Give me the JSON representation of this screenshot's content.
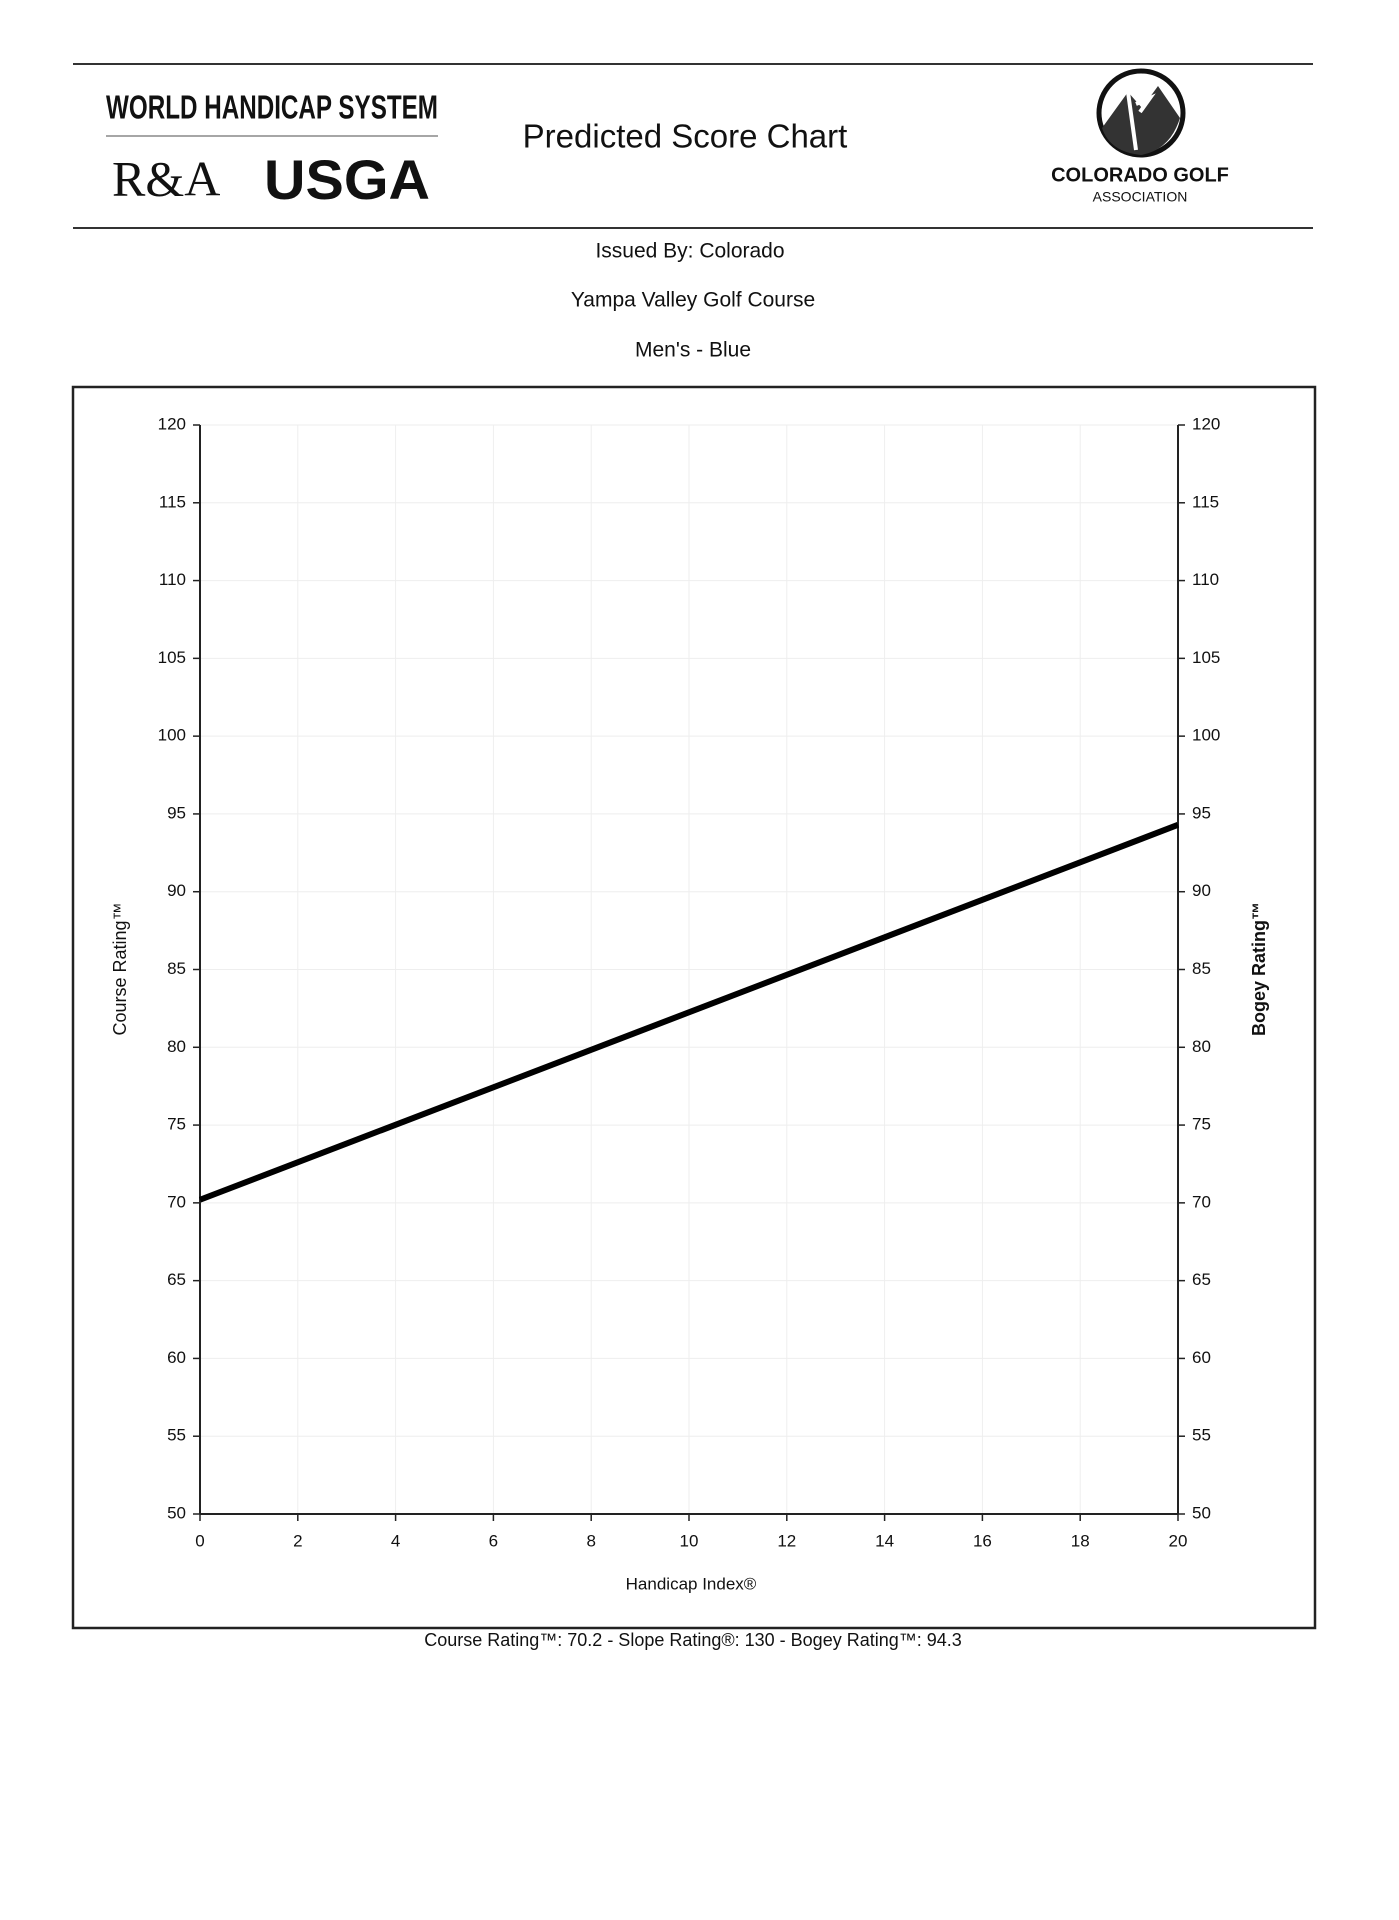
{
  "header": {
    "system": "WORLD HANDICAP SYSTEM",
    "ra": "R&A",
    "usga": "USGA",
    "title": "Predicted Score Chart",
    "association_name": "COLORADO GOLF",
    "association_sub": "ASSOCIATION",
    "issued_by": "Issued By: Colorado",
    "course": "Yampa Valley Golf Course",
    "tee": "Men's - Blue"
  },
  "chart_data": {
    "type": "line",
    "x": [
      0,
      20
    ],
    "values": [
      70.2,
      94.3
    ],
    "color": "#000000",
    "xlim": [
      0,
      20
    ],
    "xticks": [
      0,
      2,
      4,
      6,
      8,
      10,
      12,
      14,
      16,
      18,
      20
    ],
    "ylim": [
      50,
      120
    ],
    "yticks": [
      50,
      55,
      60,
      65,
      70,
      75,
      80,
      85,
      90,
      95,
      100,
      105,
      110,
      115,
      120
    ],
    "y2lim": [
      50,
      120
    ],
    "y2ticks": [
      50,
      55,
      60,
      65,
      70,
      75,
      80,
      85,
      90,
      95,
      100,
      105,
      110,
      115,
      120
    ],
    "x_label": "Handicap Index®",
    "y_label": "Course Rating™",
    "y2_label": "Bogey Rating™",
    "grid": true
  },
  "footer": "Course Rating™: 70.2 - Slope Rating®: 130 - Bogey Rating™: 94.3"
}
